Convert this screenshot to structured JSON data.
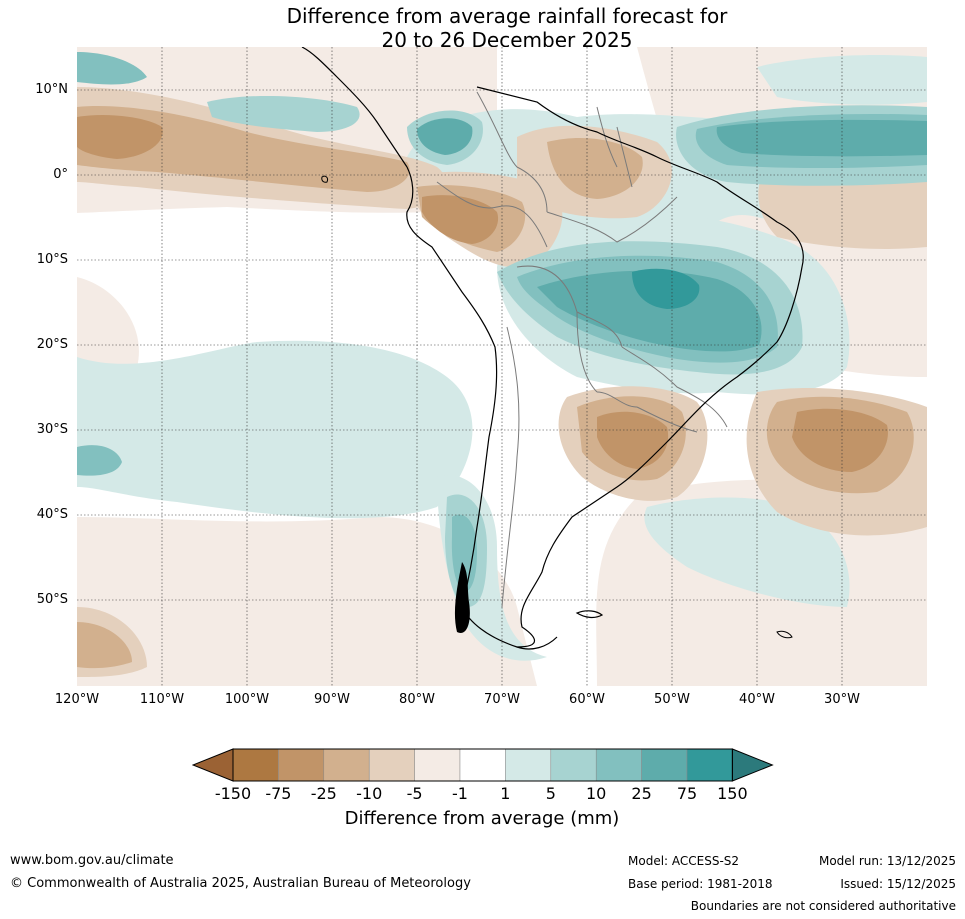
{
  "title": {
    "line1": "Difference from average rainfall forecast for",
    "line2": "20 to 26 December 2025"
  },
  "map": {
    "region": "South America",
    "latitude_labels": [
      "10°N",
      "0°",
      "10°S",
      "20°S",
      "30°S",
      "40°S",
      "50°S"
    ],
    "longitude_labels": [
      "120°W",
      "110°W",
      "100°W",
      "90°W",
      "80°W",
      "70°W",
      "60°W",
      "50°W",
      "40°W",
      "30°W"
    ],
    "features": [
      {
        "name": "wet-anomaly-brazil",
        "category": "above average"
      },
      {
        "name": "wet-anomaly-tropical-atlantic",
        "category": "above average"
      },
      {
        "name": "wet-anomaly-panama",
        "category": "above average"
      },
      {
        "name": "wet-anomaly-southern-chile",
        "category": "above average"
      },
      {
        "name": "dry-anomaly-northwest-south-america",
        "category": "below average"
      },
      {
        "name": "dry-anomaly-eastern-pacific",
        "category": "below average"
      },
      {
        "name": "dry-anomaly-southern-brazil-uruguay",
        "category": "below average"
      },
      {
        "name": "dry-anomaly-south-atlantic",
        "category": "below average"
      }
    ]
  },
  "legend": {
    "ticks": [
      "-150",
      "-75",
      "-25",
      "-10",
      "-5",
      "-1",
      "1",
      "5",
      "10",
      "25",
      "75",
      "150"
    ],
    "colors": [
      "#9b6234",
      "#ad7841",
      "#c19468",
      "#d2b08e",
      "#e4d0bd",
      "#f4ebe5",
      "#ffffff",
      "#d4e9e7",
      "#a7d3d1",
      "#82c0bf",
      "#5eacab",
      "#32999a",
      "#2c7a7c"
    ],
    "label": "Difference from average (mm)"
  },
  "footer": {
    "website": "www.bom.gov.au/climate",
    "copyright": "© Commonwealth of Australia 2025, Australian Bureau of Meteorology",
    "model": "Model: ACCESS-S2",
    "base_period": "Base period: 1981-2018",
    "model_run": "Model run: 13/12/2025",
    "issued": "Issued: 15/12/2025",
    "disclaimer": "Boundaries are not considered authoritative"
  }
}
